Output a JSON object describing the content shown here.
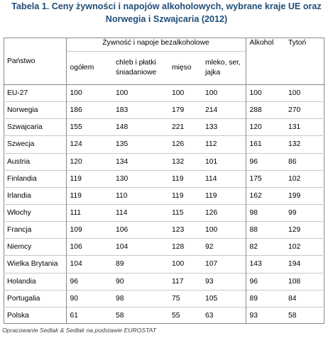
{
  "title": {
    "line1": "Tabela 1. Ceny żywności i napojów alkoholowych, wybrane kraje UE oraz",
    "line2": "Norwegia i Szwajcaria (2012)"
  },
  "table": {
    "country_header": "Państwo",
    "group_header": "Żywność i napoje bezalkoholowe",
    "group_columns": [
      "ogółem",
      "chleb i płatki śniadaniowe",
      "mięso",
      "mleko, ser, jajka"
    ],
    "alcohol_header": "Alkohol",
    "tobacco_header": "Tytoń",
    "rows": [
      {
        "country": "EU-27",
        "values": [
          "100",
          "100",
          "100",
          "100",
          "100",
          "100"
        ]
      },
      {
        "country": "Norwegia",
        "values": [
          "186",
          "183",
          "179",
          "214",
          "288",
          "270"
        ]
      },
      {
        "country": "Szwajcaria",
        "values": [
          "155",
          "148",
          "221",
          "133",
          "120",
          "131"
        ]
      },
      {
        "country": "Szwecja",
        "values": [
          "124",
          "135",
          "126",
          "112",
          "161",
          "132"
        ]
      },
      {
        "country": "Austria",
        "values": [
          "120",
          "134",
          "132",
          "101",
          "96",
          "86"
        ]
      },
      {
        "country": "Finlandia",
        "values": [
          "119",
          "130",
          "119",
          "114",
          "175",
          "102"
        ]
      },
      {
        "country": "Irlandia",
        "values": [
          "119",
          "110",
          "119",
          "119",
          "162",
          "199"
        ]
      },
      {
        "country": "Włochy",
        "values": [
          "111",
          "114",
          "115",
          "126",
          "98",
          "99"
        ]
      },
      {
        "country": "Francja",
        "values": [
          "109",
          "106",
          "123",
          "100",
          "88",
          "129"
        ]
      },
      {
        "country": "Niemcy",
        "values": [
          "106",
          "104",
          "128",
          "92",
          "82",
          "102"
        ]
      },
      {
        "country": "Wielka Brytania",
        "values": [
          "104",
          "89",
          "100",
          "107",
          "143",
          "194"
        ]
      },
      {
        "country": "Holandia",
        "values": [
          "96",
          "90",
          "117",
          "93",
          "96",
          "108"
        ]
      },
      {
        "country": "Portugalia",
        "values": [
          "90",
          "98",
          "75",
          "105",
          "89",
          "84"
        ]
      },
      {
        "country": "Polska",
        "values": [
          "61",
          "58",
          "55",
          "63",
          "93",
          "58"
        ]
      }
    ]
  },
  "source": "Opracowanie Sedlak & Sedlak na podstawie EUROSTAT"
}
